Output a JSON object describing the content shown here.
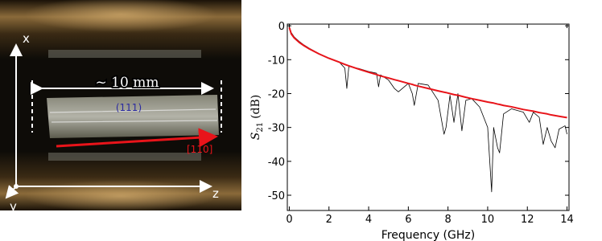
{
  "photo": {
    "labels": {
      "x_axis": "x",
      "y_axis": "y",
      "z_axis": "z",
      "length": "~ 10 mm",
      "plane": "(111)",
      "direction": "[110]"
    }
  },
  "chart_data": {
    "type": "line",
    "xlabel": "Frequency (GHz)",
    "ylabel": {
      "symbol": "S",
      "subscript": "21",
      "unit": "(dB)"
    },
    "xlim": [
      -0.1,
      14.1
    ],
    "ylim": [
      -54.5,
      0.5
    ],
    "xticks": [
      0,
      2,
      4,
      6,
      8,
      10,
      12,
      14
    ],
    "yticks": [
      0,
      -10,
      -20,
      -30,
      -40,
      -50
    ],
    "x": [
      0,
      0.1,
      0.25,
      0.5,
      0.75,
      1,
      1.5,
      2,
      2.5,
      2.8,
      2.9,
      3.0,
      3.5,
      4,
      4.4,
      4.5,
      4.6,
      5,
      5.3,
      5.5,
      6,
      6.2,
      6.3,
      6.5,
      7,
      7.5,
      7.8,
      7.9,
      8.1,
      8.3,
      8.5,
      8.7,
      8.9,
      9.2,
      9.6,
      10,
      10.2,
      10.3,
      10.5,
      10.6,
      10.8,
      11.2,
      11.8,
      12.1,
      12.3,
      12.6,
      12.8,
      13,
      13.2,
      13.4,
      13.6,
      13.9,
      14
    ],
    "series": [
      {
        "color": "#000000",
        "width": 0.8,
        "values": [
          -0.3,
          -2.0,
          -3.3,
          -4.6,
          -5.7,
          -6.6,
          -8.2,
          -9.5,
          -10.6,
          -12.5,
          -18.5,
          -12.0,
          -12.6,
          -13.5,
          -14.0,
          -18.0,
          -14.5,
          -16.0,
          -18.5,
          -19.5,
          -17.0,
          -20.0,
          -23.5,
          -17.0,
          -17.5,
          -22.0,
          -32.0,
          -30.0,
          -20.5,
          -28.5,
          -20.0,
          -31.0,
          -22.0,
          -21.5,
          -24.0,
          -30.0,
          -49.0,
          -30.0,
          -36.0,
          -37.5,
          -26.0,
          -24.5,
          -25.5,
          -28.5,
          -25.5,
          -27.0,
          -35.0,
          -30.0,
          -34.0,
          -36.0,
          -30.5,
          -29.5,
          -32.0
        ]
      },
      {
        "color": "#e8141a",
        "width": 2,
        "values": [
          -0.5,
          -2.4,
          -3.6,
          -4.9,
          -5.9,
          -6.8,
          -8.3,
          -9.6,
          -10.7,
          -11.4,
          -11.6,
          -11.8,
          -12.8,
          -13.7,
          -14.4,
          -14.6,
          -14.8,
          -15.4,
          -15.9,
          -16.2,
          -17.0,
          -17.3,
          -17.5,
          -17.8,
          -18.5,
          -19.2,
          -19.6,
          -19.7,
          -20.0,
          -20.3,
          -20.5,
          -20.8,
          -21.1,
          -21.5,
          -22.0,
          -22.5,
          -22.7,
          -22.8,
          -23.1,
          -23.2,
          -23.5,
          -23.9,
          -24.7,
          -25.0,
          -25.2,
          -25.6,
          -25.8,
          -26.0,
          -26.3,
          -26.5,
          -26.7,
          -27.0,
          -27.1
        ]
      }
    ]
  }
}
